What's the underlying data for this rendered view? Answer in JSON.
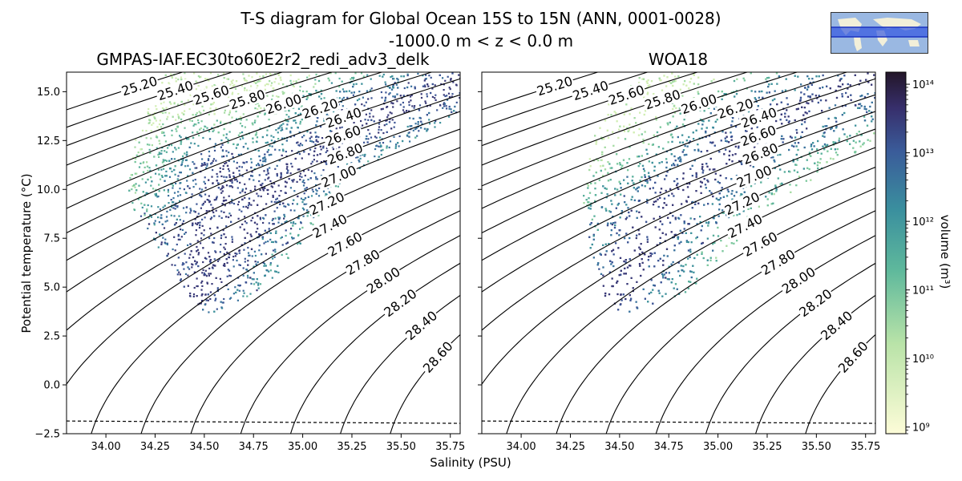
{
  "figure": {
    "title_line1": "T-S diagram for Global Ocean 15S to 15N (ANN, 0001-0028)",
    "title_line2": "-1000.0 m < z < 0.0 m",
    "xlabel": "Salinity (PSU)",
    "ylabel": "Potential temperature (°C)",
    "colorbar_label": "volume (m³)"
  },
  "chart_data": [
    {
      "type": "heatmap",
      "panel": "left",
      "title": "GMPAS-IAF.EC30to60E2r2_redi_adv3_delk",
      "xlim": [
        33.8,
        35.8
      ],
      "ylim": [
        -2.5,
        16.0
      ],
      "xticks": [
        "34.00",
        "34.25",
        "34.50",
        "34.75",
        "35.00",
        "35.25",
        "35.50",
        "35.75"
      ],
      "yticks": [
        "−2.5",
        "0.0",
        "2.5",
        "5.0",
        "7.5",
        "10.0",
        "12.5",
        "15.0"
      ],
      "freezing_line": [
        [
          33.8,
          -1.85
        ],
        [
          35.8,
          -1.97
        ]
      ],
      "density_contours": [
        "25.20",
        "25.40",
        "25.60",
        "25.80",
        "26.00",
        "26.20",
        "26.40",
        "26.60",
        "26.80",
        "27.00",
        "27.20",
        "27.40",
        "27.60",
        "27.80",
        "28.00",
        "28.20",
        "28.40",
        "28.60"
      ],
      "volume_cloud_outline": [
        [
          34.45,
          4.0
        ],
        [
          34.3,
          6.5
        ],
        [
          34.1,
          9.5
        ],
        [
          34.15,
          13.0
        ],
        [
          34.3,
          16.0
        ],
        [
          35.8,
          16.0
        ],
        [
          35.8,
          14.0
        ],
        [
          35.2,
          10.5
        ],
        [
          34.9,
          6.0
        ],
        [
          34.8,
          5.0
        ],
        [
          34.55,
          3.6
        ]
      ],
      "dense_ridges": [
        [
          [
            34.45,
            4.5
          ],
          [
            34.75,
            9.5
          ],
          [
            35.3,
            13.5
          ],
          [
            35.8,
            15.5
          ]
        ],
        [
          [
            34.5,
            5.5
          ],
          [
            34.5,
            8.0
          ],
          [
            34.6,
            11.0
          ]
        ]
      ]
    },
    {
      "type": "heatmap",
      "panel": "right",
      "title": "WOA18",
      "xlim": [
        33.8,
        35.8
      ],
      "ylim": [
        -2.5,
        16.0
      ],
      "xticks": [
        "34.00",
        "34.25",
        "34.50",
        "34.75",
        "35.00",
        "35.25",
        "35.50",
        "35.75"
      ],
      "freezing_line": [
        [
          33.8,
          -1.85
        ],
        [
          35.8,
          -1.97
        ]
      ],
      "density_contours": [
        "25.20",
        "25.40",
        "25.60",
        "25.80",
        "26.00",
        "26.20",
        "26.40",
        "26.60",
        "26.80",
        "27.00",
        "27.20",
        "27.40",
        "27.60",
        "27.80",
        "28.00",
        "28.20",
        "28.40",
        "28.60"
      ],
      "volume_cloud_outline": [
        [
          34.45,
          3.8
        ],
        [
          34.35,
          6.5
        ],
        [
          34.3,
          10.0
        ],
        [
          34.4,
          14.0
        ],
        [
          34.6,
          16.0
        ],
        [
          35.8,
          16.0
        ],
        [
          35.8,
          12.5
        ],
        [
          35.3,
          9.5
        ],
        [
          35.0,
          6.5
        ],
        [
          34.9,
          5.0
        ],
        [
          34.55,
          3.7
        ]
      ],
      "dense_ridges": [
        [
          [
            34.45,
            4.0
          ],
          [
            34.7,
            9.0
          ],
          [
            35.2,
            13.0
          ],
          [
            35.8,
            16.0
          ]
        ]
      ]
    }
  ],
  "colorbar": {
    "type": "log",
    "range": [
      800000000,
      150000000000000
    ],
    "tick_labels": [
      "10⁹",
      "10¹⁰",
      "10¹¹",
      "10¹²",
      "10¹³",
      "10¹⁴"
    ],
    "tick_values": [
      9,
      10,
      11,
      12,
      13,
      14
    ]
  },
  "inset_map": {
    "description_region": "15S to 15N"
  }
}
